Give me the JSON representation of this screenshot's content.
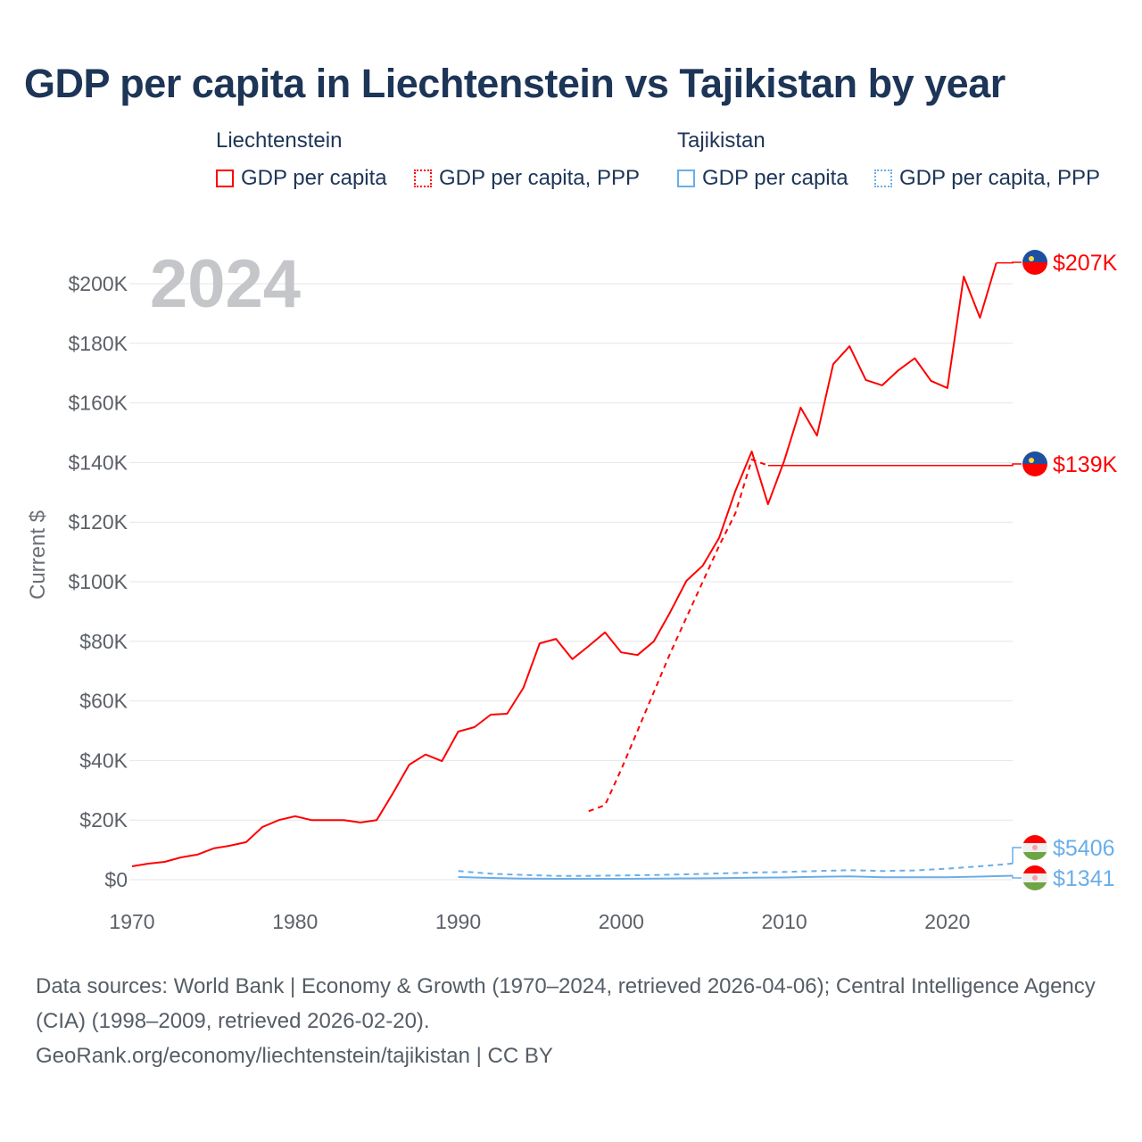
{
  "title": "GDP per capita in Liechtenstein vs Tajikistan by year",
  "legend": {
    "groups": [
      {
        "name": "Liechtenstein",
        "items": [
          {
            "label": "GDP per capita",
            "style": "solid",
            "color": "#ff0000"
          },
          {
            "label": "GDP per capita, PPP",
            "style": "dotted",
            "color": "#ff0000"
          }
        ]
      },
      {
        "name": "Tajikistan",
        "items": [
          {
            "label": "GDP per capita",
            "style": "solid",
            "color": "#6aaee8"
          },
          {
            "label": "GDP per capita, PPP",
            "style": "dotted",
            "color": "#6aaee8"
          }
        ]
      }
    ]
  },
  "footer": {
    "sources": "Data sources: World Bank | Economy & Growth (1970–2024, retrieved 2026-04-06); Central Intelligence Agency (CIA) (1998–2009, retrieved 2026-02-20).",
    "link": "GeoRank.org/economy/liechtenstein/tajikistan | CC BY"
  },
  "chart_data": {
    "type": "line",
    "title": "GDP per capita in Liechtenstein vs Tajikistan by year",
    "year_label": "2024",
    "xlabel": "",
    "ylabel": "Current $",
    "xlim": [
      1970,
      2024
    ],
    "ylim": [
      0,
      210000
    ],
    "x_ticks": [
      1970,
      1980,
      1990,
      2000,
      2010,
      2020
    ],
    "y_ticks": [
      0,
      20000,
      40000,
      60000,
      80000,
      100000,
      120000,
      140000,
      160000,
      180000,
      200000
    ],
    "y_tick_labels": [
      "$0",
      "$20K",
      "$40K",
      "$60K",
      "$80K",
      "$100K",
      "$120K",
      "$140K",
      "$160K",
      "$180K",
      "$200K"
    ],
    "grid": true,
    "series": [
      {
        "name": "Liechtenstein GDP per capita",
        "color": "#ff0000",
        "dash": "none",
        "end_label": "$207K",
        "flag": "liechtenstein",
        "x": [
          1970,
          1971,
          1972,
          1973,
          1974,
          1975,
          1976,
          1977,
          1978,
          1979,
          1980,
          1981,
          1982,
          1983,
          1984,
          1985,
          1986,
          1987,
          1988,
          1989,
          1990,
          1991,
          1992,
          1993,
          1994,
          1995,
          1996,
          1997,
          1998,
          1999,
          2000,
          2001,
          2002,
          2003,
          2004,
          2005,
          2006,
          2007,
          2008,
          2009,
          2010,
          2011,
          2012,
          2013,
          2014,
          2015,
          2016,
          2017,
          2018,
          2019,
          2020,
          2021,
          2022,
          2023
        ],
        "values": [
          4500,
          5400,
          6000,
          7500,
          8400,
          10500,
          11400,
          12600,
          17700,
          20000,
          21300,
          20000,
          20000,
          20000,
          19200,
          20000,
          29000,
          38600,
          42000,
          39800,
          49700,
          51200,
          55400,
          55700,
          64400,
          79300,
          80800,
          74000,
          78400,
          83000,
          76300,
          75400,
          80000,
          89800,
          100300,
          105400,
          114700,
          130500,
          143700,
          126000,
          140700,
          158400,
          149000,
          173000,
          179000,
          167700,
          165900,
          171000,
          175000,
          167400,
          165000,
          202400,
          188600,
          207000
        ]
      },
      {
        "name": "Liechtenstein GDP per capita, PPP",
        "color": "#ff0000",
        "dash": "6,5",
        "end_label": "$139K",
        "flag": "liechtenstein",
        "x": [
          1998,
          1999,
          2000,
          2001,
          2002,
          2003,
          2004,
          2005,
          2006,
          2007,
          2008,
          2009
        ],
        "values": [
          23000,
          25000,
          37000,
          50000,
          63000,
          76000,
          88000,
          100000,
          112000,
          123000,
          141000,
          139000
        ]
      },
      {
        "name": "Tajikistan GDP per capita, PPP",
        "color": "#6aaee8",
        "dash": "6,5",
        "end_label": "$5406",
        "flag": "tajikistan",
        "x": [
          1990,
          1992,
          1994,
          1996,
          1998,
          2000,
          2002,
          2004,
          2006,
          2008,
          2010,
          2012,
          2014,
          2016,
          2018,
          2020,
          2022,
          2024
        ],
        "values": [
          2900,
          2000,
          1600,
          1300,
          1300,
          1400,
          1600,
          1800,
          2100,
          2400,
          2600,
          2900,
          3200,
          2900,
          3100,
          3700,
          4500,
          5406
        ]
      },
      {
        "name": "Tajikistan GDP per capita",
        "color": "#6aaee8",
        "dash": "none",
        "end_label": "$1341",
        "flag": "tajikistan",
        "x": [
          1990,
          1992,
          1994,
          1996,
          1998,
          2000,
          2002,
          2004,
          2006,
          2008,
          2010,
          2012,
          2014,
          2016,
          2018,
          2020,
          2022,
          2024
        ],
        "values": [
          900,
          600,
          400,
          300,
          300,
          300,
          350,
          450,
          550,
          700,
          750,
          950,
          1100,
          800,
          850,
          850,
          1050,
          1341
        ]
      }
    ]
  }
}
